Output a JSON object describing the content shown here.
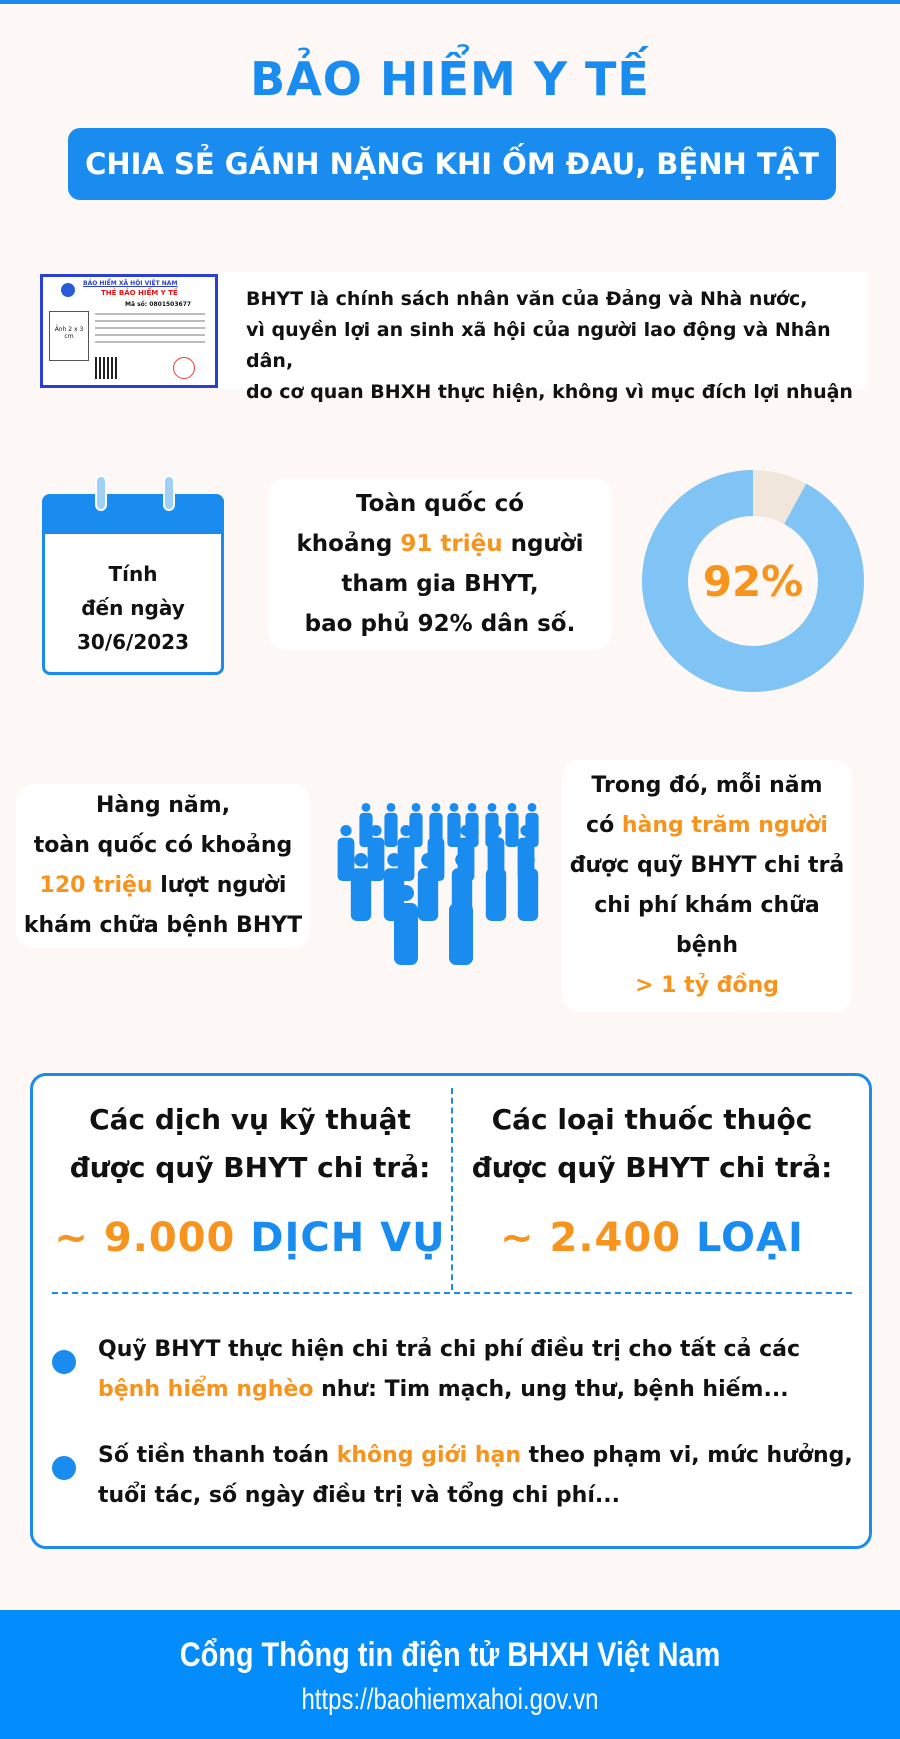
{
  "colors": {
    "primary": "#1a8cf0",
    "accent": "#f7941d",
    "background": "#fdf8f5",
    "donut_fill": "#80c4f5",
    "donut_rest": "#f1e6dc"
  },
  "header": {
    "title": "BẢO HIỂM Y TẾ",
    "subtitle": "CHIA SẺ GÁNH NẶNG KHI ỐM ĐAU, BỆNH TẬT"
  },
  "card": {
    "org": "BẢO HIỂM XÃ HỘI VIỆT NAM",
    "card_title": "THẺ BẢO HIỂM Y TẾ",
    "code": "Mã số: 0801503677",
    "photo": "Ảnh 2 x 3 cm"
  },
  "intro": {
    "lines": [
      "BHYT là chính sách nhân văn của Đảng và Nhà nước,",
      "vì quyền lợi an sinh xã hội của người lao động và Nhân dân,",
      "do cơ quan BHXH thực hiện, không vì mục đích lợi nhuận"
    ]
  },
  "calendar": {
    "lines": [
      "Tính",
      "đến ngày",
      "30/6/2023"
    ]
  },
  "coverage": {
    "l1": "Toàn quốc có",
    "l2a": "khoảng ",
    "l2b": "91 triệu",
    "l2c": " người",
    "l3": "tham gia BHYT,",
    "l4": "bao phủ 92% dân số.",
    "donut_label": "92%",
    "donut_percent": 92
  },
  "visits": {
    "l1": "Hàng năm,",
    "l2": "toàn quốc có khoảng",
    "l3a": "120 triệu",
    "l3b": " lượt người",
    "l4": "khám chữa bệnh BHYT"
  },
  "big_payers": {
    "l1": "Trong đó, mỗi năm",
    "l2a": "có ",
    "l2b": "hàng trăm người",
    "l3": "được quỹ BHYT chi trả",
    "l4": "chi phí khám chữa bệnh",
    "l5": "> 1 tỷ đồng"
  },
  "services": {
    "l1": "Các dịch vụ kỹ thuật",
    "l2": "được quỹ BHYT chi trả:",
    "approx": "~ ",
    "value": "9.000",
    "unit": " DỊCH VỤ"
  },
  "drugs": {
    "l1": "Các loại thuốc thuộc",
    "l2": "được quỹ BHYT chi trả:",
    "approx": "~ ",
    "value": "2.400",
    "unit": " LOẠI"
  },
  "bullets": [
    {
      "a": "Quỹ BHYT thực hiện chi trả chi phí điều trị cho tất cả các ",
      "b": "bệnh hiểm nghèo",
      "c": " như: Tim mạch, ung thư, bệnh hiếm..."
    },
    {
      "a": "Số tiền thanh toán ",
      "b": "không giới hạn",
      "c": " theo phạm vi, mức hưởng, tuổi tác, số ngày điều trị và tổng chi phí..."
    }
  ],
  "footer": {
    "name": "Cổng Thông tin điện tử BHXH Việt Nam",
    "url": "https://baohiemxahoi.gov.vn"
  }
}
